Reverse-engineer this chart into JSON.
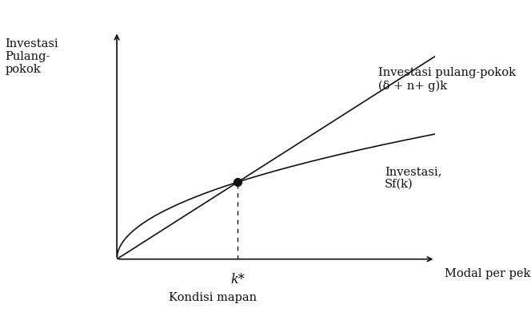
{
  "ylabel": "Investasi\nPulang-\npokok",
  "xlabel": "Modal per pekerja, k",
  "bottom_label": "Kondisi mapan",
  "line1_label_line1": "Investasi pulang-pokok",
  "line1_label_line2": "(δ + n+ g)k",
  "line2_label_line1": "Investasi,",
  "line2_label_line2": "Sf(k)",
  "kstar_label": "k*",
  "kstar": 0.38,
  "alpha": 0.5,
  "s": 0.55,
  "xmax": 1.0,
  "ymax": 1.0,
  "background_color": "#ffffff",
  "line_color": "#111111",
  "dot_color": "#111111",
  "font_size": 10.5,
  "label_font_size": 10.5
}
